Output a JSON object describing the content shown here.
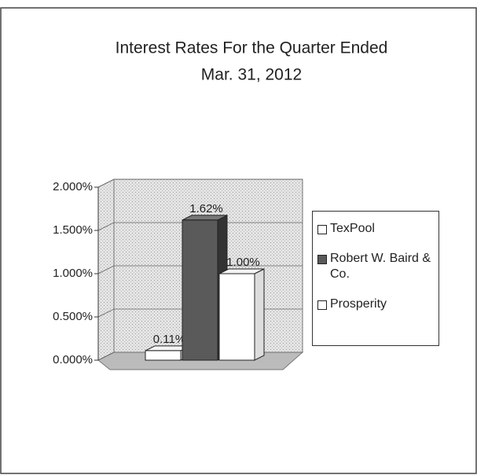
{
  "chart_data": {
    "type": "bar3d",
    "title": "Interest Rates For the Quarter Ended",
    "subtitle": "Mar. 31, 2012",
    "categories": [
      null
    ],
    "series": [
      {
        "name": "TexPool",
        "color": "#ffffff",
        "values": [
          0.11
        ],
        "value_labels": [
          "0.11%"
        ]
      },
      {
        "name": "Robert W. Baird & Co.",
        "color": "#5a5a5a",
        "values": [
          1.62
        ],
        "value_labels": [
          "1.62%"
        ]
      },
      {
        "name": "Prosperity",
        "color": "#ffffff",
        "values": [
          1.0
        ],
        "value_labels": [
          "1.00%"
        ]
      }
    ],
    "ylim": [
      0,
      2
    ],
    "yticks": [
      {
        "value": 0,
        "label": "0.000%"
      },
      {
        "value": 0.5,
        "label": "0.500%"
      },
      {
        "value": 1,
        "label": "1.000%"
      },
      {
        "value": 1.5,
        "label": "1.500%"
      },
      {
        "value": 2,
        "label": "2.000%"
      }
    ],
    "grid": true,
    "legend": "right"
  }
}
